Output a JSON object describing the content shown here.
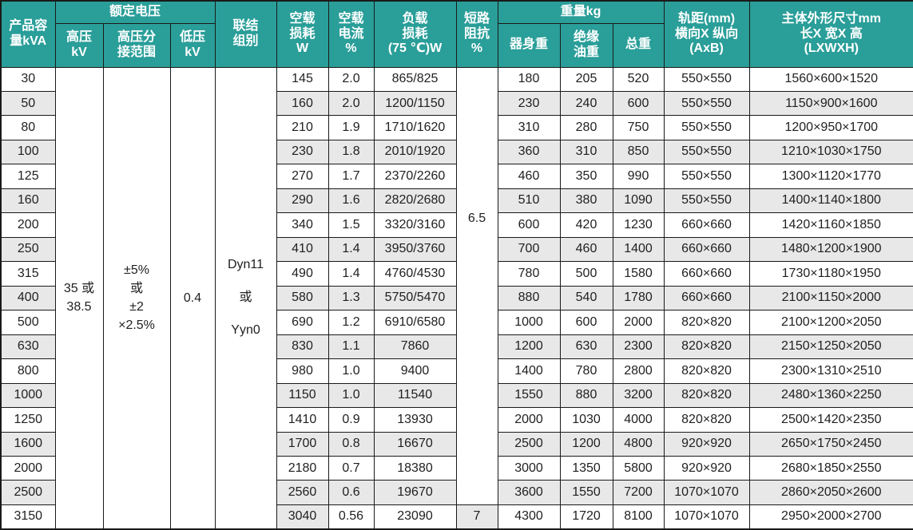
{
  "colors": {
    "header_bg": "#2a9e99",
    "stripe": "#e8e8e8",
    "border": "#1a1a1a",
    "text": "#1f1f1f",
    "header_text": "#ffffff"
  },
  "header": {
    "capacity": "产品容\n量kVA",
    "rated_voltage": "额定电压",
    "hv": "高压\nkV",
    "hv_tap_range": "高压分\n接范围",
    "lv": "低压\nkV",
    "vector_group": "联结\n组别",
    "no_load_loss": "空载\n损耗\nW",
    "no_load_current": "空载\n电流\n%",
    "load_loss": "负载\n损耗\n(75 ℃)W",
    "impedance": "短路\n阻抗\n%",
    "weight": "重量kg",
    "body_weight": "器身重",
    "oil_weight": "绝缘\n油重",
    "total_weight": "总重",
    "gauge": "轨距(mm)\n横向X 纵向\n(AxB)",
    "dimensions": "主体外形尺寸mm\n长X 宽X 高\n(LXWXH)"
  },
  "merged": {
    "hv": "35 或\n38.5",
    "hv_tap_range": "±5%\n或\n±2\n×2.5%",
    "lv": "0.4",
    "vector_group": "Dyn11\n或\nYyn0",
    "impedance_main": "6.5",
    "impedance_last": "7"
  },
  "rows": [
    {
      "kva": "30",
      "no_load_loss": "145",
      "no_load_current": "2.0",
      "load_loss": "865/825",
      "body_weight": "180",
      "oil_weight": "205",
      "total_weight": "520",
      "gauge": "550×550",
      "dimensions": "1560×600×1520"
    },
    {
      "kva": "50",
      "no_load_loss": "160",
      "no_load_current": "2.0",
      "load_loss": "1200/1150",
      "body_weight": "230",
      "oil_weight": "240",
      "total_weight": "600",
      "gauge": "550×550",
      "dimensions": "1150×900×1600"
    },
    {
      "kva": "80",
      "no_load_loss": "210",
      "no_load_current": "1.9",
      "load_loss": "1710/1620",
      "body_weight": "310",
      "oil_weight": "280",
      "total_weight": "750",
      "gauge": "550×550",
      "dimensions": "1200×950×1700"
    },
    {
      "kva": "100",
      "no_load_loss": "230",
      "no_load_current": "1.8",
      "load_loss": "2010/1920",
      "body_weight": "360",
      "oil_weight": "310",
      "total_weight": "850",
      "gauge": "550×550",
      "dimensions": "1210×1030×1750"
    },
    {
      "kva": "125",
      "no_load_loss": "270",
      "no_load_current": "1.7",
      "load_loss": "2370/2260",
      "body_weight": "460",
      "oil_weight": "350",
      "total_weight": "990",
      "gauge": "550×550",
      "dimensions": "1300×1120×1770"
    },
    {
      "kva": "160",
      "no_load_loss": "290",
      "no_load_current": "1.6",
      "load_loss": "2820/2680",
      "body_weight": "510",
      "oil_weight": "380",
      "total_weight": "1090",
      "gauge": "550×550",
      "dimensions": "1400×1140×1800"
    },
    {
      "kva": "200",
      "no_load_loss": "340",
      "no_load_current": "1.5",
      "load_loss": "3320/3160",
      "body_weight": "600",
      "oil_weight": "420",
      "total_weight": "1230",
      "gauge": "660×660",
      "dimensions": "1420×1160×1850"
    },
    {
      "kva": "250",
      "no_load_loss": "410",
      "no_load_current": "1.4",
      "load_loss": "3950/3760",
      "body_weight": "700",
      "oil_weight": "460",
      "total_weight": "1400",
      "gauge": "660×660",
      "dimensions": "1480×1200×1900"
    },
    {
      "kva": "315",
      "no_load_loss": "490",
      "no_load_current": "1.4",
      "load_loss": "4760/4530",
      "body_weight": "780",
      "oil_weight": "500",
      "total_weight": "1580",
      "gauge": "660×660",
      "dimensions": "1730×1180×1950"
    },
    {
      "kva": "400",
      "no_load_loss": "580",
      "no_load_current": "1.3",
      "load_loss": "5750/5470",
      "body_weight": "880",
      "oil_weight": "540",
      "total_weight": "1780",
      "gauge": "660×660",
      "dimensions": "2100×1150×2000"
    },
    {
      "kva": "500",
      "no_load_loss": "690",
      "no_load_current": "1.2",
      "load_loss": "6910/6580",
      "body_weight": "1000",
      "oil_weight": "600",
      "total_weight": "2000",
      "gauge": "820×820",
      "dimensions": "2100×1200×2050"
    },
    {
      "kva": "630",
      "no_load_loss": "830",
      "no_load_current": "1.1",
      "load_loss": "7860",
      "body_weight": "1200",
      "oil_weight": "630",
      "total_weight": "2300",
      "gauge": "820×820",
      "dimensions": "2150×1250×2050"
    },
    {
      "kva": "800",
      "no_load_loss": "980",
      "no_load_current": "1.0",
      "load_loss": "9400",
      "body_weight": "1400",
      "oil_weight": "780",
      "total_weight": "2800",
      "gauge": "820×820",
      "dimensions": "2300×1310×2510"
    },
    {
      "kva": "1000",
      "no_load_loss": "1150",
      "no_load_current": "1.0",
      "load_loss": "11540",
      "body_weight": "1550",
      "oil_weight": "880",
      "total_weight": "3200",
      "gauge": "820×820",
      "dimensions": "2480×1360×2250"
    },
    {
      "kva": "1250",
      "no_load_loss": "1410",
      "no_load_current": "0.9",
      "load_loss": "13930",
      "body_weight": "2000",
      "oil_weight": "1030",
      "total_weight": "4000",
      "gauge": "820×820",
      "dimensions": "2500×1420×2350"
    },
    {
      "kva": "1600",
      "no_load_loss": "1700",
      "no_load_current": "0.8",
      "load_loss": "16670",
      "body_weight": "2500",
      "oil_weight": "1200",
      "total_weight": "4800",
      "gauge": "920×920",
      "dimensions": "2650×1750×2450"
    },
    {
      "kva": "2000",
      "no_load_loss": "2180",
      "no_load_current": "0.7",
      "load_loss": "18380",
      "body_weight": "3000",
      "oil_weight": "1350",
      "total_weight": "5800",
      "gauge": "920×920",
      "dimensions": "2680×1850×2550"
    },
    {
      "kva": "2500",
      "no_load_loss": "2560",
      "no_load_current": "0.6",
      "load_loss": "19670",
      "body_weight": "3600",
      "oil_weight": "1550",
      "total_weight": "7200",
      "gauge": "1070×1070",
      "dimensions": "2860×2050×2600"
    },
    {
      "kva": "3150",
      "no_load_loss": "3040",
      "no_load_current": "0.56",
      "load_loss": "23090",
      "body_weight": "4300",
      "oil_weight": "1720",
      "total_weight": "8100",
      "gauge": "1070×1070",
      "dimensions": "2950×2000×2700"
    }
  ]
}
